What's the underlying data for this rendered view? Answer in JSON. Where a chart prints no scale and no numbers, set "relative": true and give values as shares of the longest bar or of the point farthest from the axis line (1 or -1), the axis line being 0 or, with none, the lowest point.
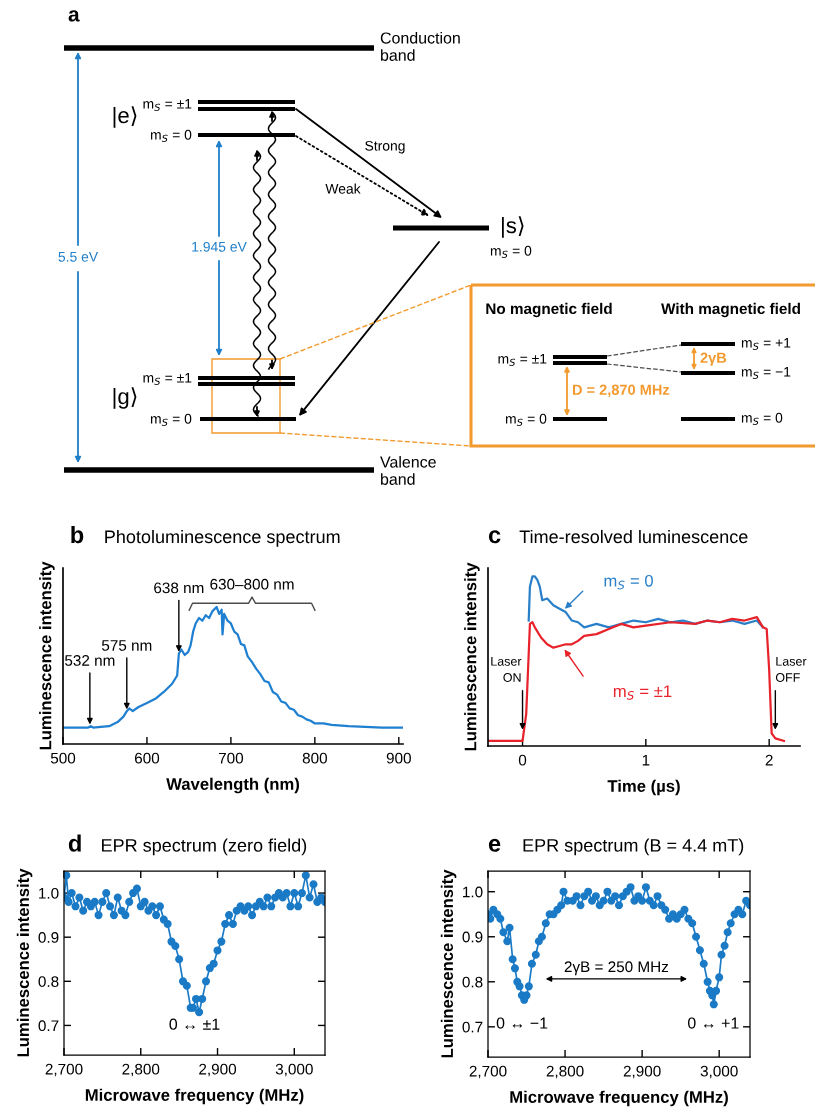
{
  "chart_data": [
    {
      "type": "other",
      "annotations": [
        "a",
        "Conduction\nband",
        "Valence\nband",
        "5.5 eV",
        "1.945 eV",
        "|e⟩",
        "m$_{S}$ = ±1",
        "m$_{S}$ = 0",
        "Strong",
        "Weak",
        "|s⟩",
        "m$_{S}$ = 0",
        "|g⟩",
        "m$_{S}$ = ±1",
        "m$_{S}$ = 0",
        "No magnetic field",
        "With magnetic field",
        "m$_{S}$ = ±1",
        "m$_{S}$ = 0",
        "m$_{S}$ = +1",
        "m$_{S}$ = −1",
        "m$_{S}$ = 0",
        "2γB",
        "D = 2,870 MHz"
      ]
    },
    {
      "type": "line",
      "title": "Photoluminescence spectrum",
      "xlabel": "Wavelength (nm)",
      "ylabel": "Luminescence intensity",
      "relative": true,
      "xlim": [
        500,
        905
      ],
      "xticks": [
        500,
        600,
        700,
        800,
        900
      ],
      "x": [
        500,
        520,
        530,
        533,
        536,
        545,
        555,
        565,
        572,
        576,
        579,
        583,
        590,
        600,
        610,
        620,
        630,
        636,
        638,
        641,
        645,
        649,
        652,
        655,
        658,
        662,
        666,
        670,
        674,
        678,
        683,
        686,
        689,
        690,
        692,
        696,
        700,
        704,
        708,
        712,
        716,
        720,
        725,
        730,
        735,
        740,
        745,
        750,
        755,
        760,
        765,
        770,
        775,
        780,
        785,
        790,
        795,
        800,
        810,
        820,
        840,
        860,
        880,
        905
      ],
      "series": [
        {
          "color": "#1f7fd0",
          "values": [
            0.12,
            0.12,
            0.12,
            0.13,
            0.12,
            0.125,
            0.13,
            0.16,
            0.2,
            0.24,
            0.26,
            0.24,
            0.27,
            0.3,
            0.33,
            0.38,
            0.44,
            0.5,
            0.66,
            0.69,
            0.65,
            0.67,
            0.72,
            0.82,
            0.88,
            0.92,
            0.9,
            0.94,
            0.92,
            0.97,
            1.0,
            0.95,
            0.98,
            0.8,
            0.95,
            0.9,
            0.88,
            0.82,
            0.8,
            0.73,
            0.72,
            0.64,
            0.6,
            0.55,
            0.51,
            0.46,
            0.45,
            0.38,
            0.36,
            0.31,
            0.3,
            0.26,
            0.25,
            0.21,
            0.2,
            0.18,
            0.17,
            0.15,
            0.15,
            0.14,
            0.13,
            0.125,
            0.12,
            0.12
          ]
        }
      ],
      "annotations": [
        {
          "text": "532 nm",
          "x": 532,
          "y": 0.13
        },
        {
          "text": "575 nm",
          "x": 576,
          "y": 0.24
        },
        {
          "text": "638 nm",
          "x": 638,
          "y": 0.66
        },
        "630–800 nm",
        "b"
      ]
    },
    {
      "type": "line",
      "title": "Time-resolved luminescence",
      "xlabel": "Time (µs)",
      "ylabel": "Luminescence intensity",
      "relative": true,
      "xlim": [
        -0.28,
        2.25
      ],
      "xticks": [
        0,
        1,
        2
      ],
      "series": [
        {
          "name": "m$_{S}$ = 0",
          "color": "#2a7fc9",
          "x": [
            0.05,
            0.06,
            0.08,
            0.1,
            0.12,
            0.14,
            0.16,
            0.2,
            0.25,
            0.3,
            0.35,
            0.4,
            0.45,
            0.5,
            0.6,
            0.7,
            0.8,
            0.9,
            1.0,
            1.1,
            1.2,
            1.3,
            1.4,
            1.5,
            1.6,
            1.7,
            1.8,
            1.9,
            1.95
          ],
          "values": [
            0.74,
            0.94,
            1.0,
            1.0,
            0.98,
            0.94,
            0.86,
            0.87,
            0.83,
            0.81,
            0.79,
            0.74,
            0.73,
            0.7,
            0.72,
            0.7,
            0.72,
            0.74,
            0.73,
            0.75,
            0.73,
            0.74,
            0.72,
            0.74,
            0.73,
            0.74,
            0.72,
            0.74,
            0.7
          ]
        },
        {
          "name": "m$_{S}$ = ±1",
          "color": "#e8222a",
          "x": [
            -0.28,
            0,
            0.03,
            0.06,
            0.08,
            0.1,
            0.15,
            0.2,
            0.25,
            0.3,
            0.35,
            0.4,
            0.45,
            0.5,
            0.6,
            0.7,
            0.8,
            0.9,
            1.0,
            1.2,
            1.4,
            1.5,
            1.6,
            1.7,
            1.8,
            1.9,
            1.95,
            1.98,
            2.0,
            2.02,
            2.05,
            2.12
          ],
          "values": [
            0.03,
            0.03,
            0.19,
            0.72,
            0.73,
            0.7,
            0.64,
            0.6,
            0.58,
            0.59,
            0.6,
            0.6,
            0.62,
            0.65,
            0.66,
            0.69,
            0.72,
            0.7,
            0.71,
            0.73,
            0.72,
            0.74,
            0.73,
            0.75,
            0.74,
            0.76,
            0.7,
            0.69,
            0.45,
            0.075,
            0.045,
            0.03
          ]
        }
      ],
      "annotations": [
        {
          "text": "Laser\nON",
          "x": 0,
          "y": 0.08
        },
        {
          "text": "Laser\nOFF",
          "x": 2.05,
          "y": 0.08
        },
        "c"
      ]
    },
    {
      "type": "line",
      "title": "EPR spectrum (zero field)",
      "xlabel": "Microwave frequency (MHz)",
      "ylabel": "Luminescence intensity",
      "marker": "circle",
      "line_style": "solid",
      "xlim": [
        2700,
        3040
      ],
      "ylim": [
        0.633,
        1.05
      ],
      "xticks": [
        {
          "value": 2700,
          "label": "2,700"
        },
        {
          "value": 2800,
          "label": "2,800"
        },
        {
          "value": 2900,
          "label": "2,900"
        },
        {
          "value": 3000,
          "label": "3,000"
        }
      ],
      "yticks": [
        0.7,
        0.8,
        0.9,
        {
          "value": 1.0,
          "label": "1.0"
        }
      ],
      "x": [
        2700,
        2703,
        2706,
        2710,
        2715,
        2720,
        2725,
        2730,
        2735,
        2740,
        2745,
        2750,
        2755,
        2760,
        2765,
        2770,
        2775,
        2780,
        2785,
        2790,
        2795,
        2800,
        2805,
        2810,
        2815,
        2820,
        2825,
        2830,
        2835,
        2840,
        2845,
        2850,
        2855,
        2860,
        2865,
        2868,
        2872,
        2876,
        2880,
        2885,
        2890,
        2895,
        2900,
        2905,
        2910,
        2915,
        2920,
        2925,
        2930,
        2935,
        2940,
        2945,
        2950,
        2955,
        2960,
        2965,
        2970,
        2975,
        2980,
        2985,
        2990,
        2995,
        3000,
        3005,
        3010,
        3015,
        3020,
        3025,
        3030,
        3035,
        3040
      ],
      "series": [
        {
          "color": "#1a7ac6",
          "values": [
            0.99,
            1.04,
            0.98,
            1.0,
            0.97,
            0.99,
            0.96,
            0.98,
            0.97,
            0.98,
            0.95,
            0.98,
            1.0,
            0.97,
            0.95,
            0.99,
            0.96,
            0.95,
            0.98,
            1.0,
            1.01,
            0.97,
            0.98,
            0.96,
            0.97,
            0.95,
            0.97,
            0.94,
            0.93,
            0.89,
            0.88,
            0.85,
            0.8,
            0.79,
            0.74,
            0.74,
            0.76,
            0.73,
            0.76,
            0.8,
            0.83,
            0.84,
            0.87,
            0.89,
            0.93,
            0.95,
            0.93,
            0.96,
            0.97,
            0.96,
            0.97,
            0.95,
            0.97,
            0.98,
            0.97,
            0.99,
            0.97,
            0.99,
            1.0,
            0.99,
            1.0,
            0.97,
            1.0,
            0.97,
            1.0,
            1.04,
            0.99,
            1.02,
            0.98,
            0.99,
            0.98
          ]
        }
      ],
      "annotations": [
        "0 ↔ ±1",
        "d"
      ]
    },
    {
      "type": "line",
      "title": "EPR spectrum (B = 4.4 mT)",
      "xlabel": "Microwave frequency (MHz)",
      "ylabel": "Luminescence intensity",
      "marker": "circle",
      "line_style": "solid",
      "xlim": [
        2700,
        3040
      ],
      "ylim": [
        0.633,
        1.046
      ],
      "xticks": [
        {
          "value": 2700,
          "label": "2,700"
        },
        {
          "value": 2800,
          "label": "2,800"
        },
        {
          "value": 2900,
          "label": "2,900"
        },
        {
          "value": 3000,
          "label": "3,000"
        }
      ],
      "yticks": [
        0.7,
        0.8,
        0.9,
        {
          "value": 1.0,
          "label": "1.0"
        }
      ],
      "x": [
        2700,
        2703,
        2707,
        2712,
        2716,
        2720,
        2725,
        2728,
        2732,
        2735,
        2738,
        2741,
        2744,
        2747,
        2750,
        2753,
        2757,
        2762,
        2766,
        2770,
        2775,
        2780,
        2785,
        2790,
        2795,
        2798,
        2803,
        2810,
        2815,
        2820,
        2825,
        2830,
        2835,
        2840,
        2845,
        2850,
        2855,
        2860,
        2865,
        2870,
        2875,
        2880,
        2885,
        2890,
        2895,
        2900,
        2905,
        2910,
        2915,
        2920,
        2925,
        2930,
        2935,
        2940,
        2945,
        2950,
        2955,
        2960,
        2965,
        2970,
        2975,
        2980,
        2985,
        2988,
        2991,
        2993,
        2996,
        3000,
        3003,
        3007,
        3011,
        3015,
        3020,
        3025,
        3030,
        3035,
        3040
      ],
      "series": [
        {
          "color": "#1a7ac6",
          "values": [
            0.95,
            0.94,
            0.96,
            0.95,
            0.94,
            0.91,
            0.89,
            0.92,
            0.85,
            0.83,
            0.8,
            0.79,
            0.77,
            0.76,
            0.77,
            0.79,
            0.84,
            0.86,
            0.89,
            0.9,
            0.93,
            0.95,
            0.95,
            0.96,
            0.97,
            1.0,
            0.98,
            0.98,
            0.99,
            0.97,
            0.99,
            1.0,
            0.98,
            0.99,
            0.97,
            0.98,
            1.0,
            0.98,
            0.99,
            0.97,
            0.99,
            1.0,
            1.01,
            0.98,
            0.99,
            0.98,
            1.01,
            0.98,
            0.97,
            0.99,
            0.97,
            0.96,
            0.94,
            0.95,
            0.94,
            0.95,
            0.96,
            0.94,
            0.93,
            0.9,
            0.87,
            0.84,
            0.8,
            0.78,
            0.77,
            0.75,
            0.78,
            0.81,
            0.86,
            0.88,
            0.91,
            0.93,
            0.95,
            0.96,
            0.95,
            0.98,
            0.97
          ]
        }
      ],
      "annotations": [
        "0 ↔ −1",
        "0 ↔ +1",
        "2γB = 250 MHz",
        "e"
      ]
    }
  ]
}
